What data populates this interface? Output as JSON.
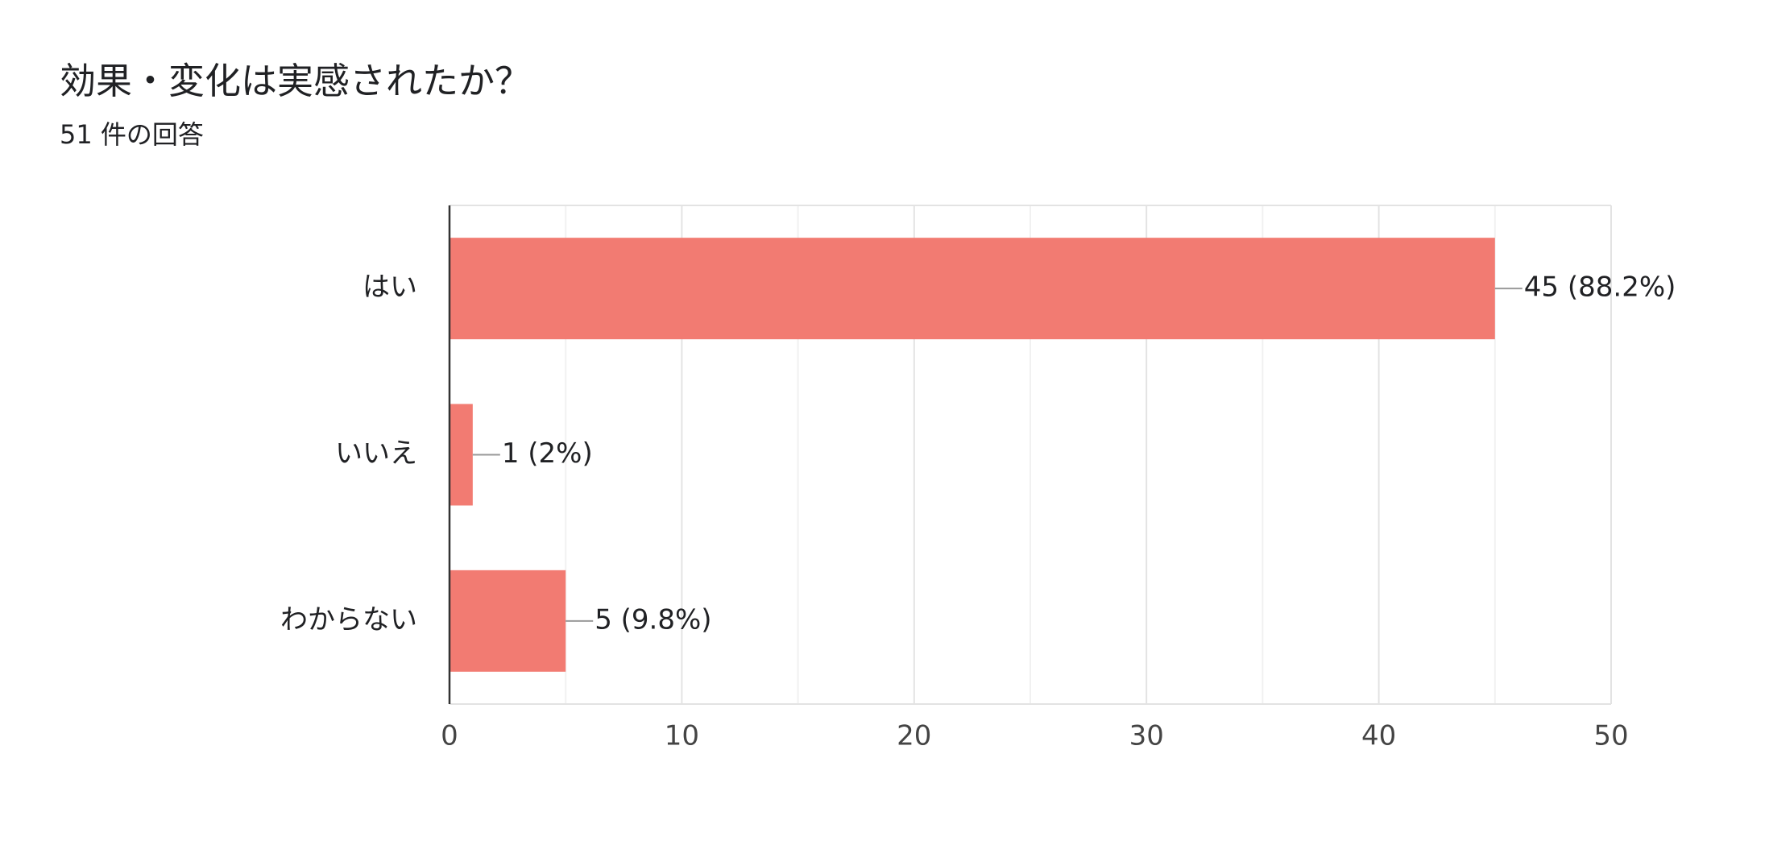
{
  "chart_data": {
    "type": "bar",
    "orientation": "horizontal",
    "title": "効果・変化は実感されたか？",
    "subtitle": "51 件の回答",
    "categories": [
      "はい",
      "いいえ",
      "わからない"
    ],
    "values": [
      45,
      1,
      5
    ],
    "value_labels": [
      "45 (88.2%)",
      "1 (2%)",
      "5 (9.8%)"
    ],
    "color": "#f27b72",
    "xlim": [
      0,
      50
    ],
    "xticks": [
      0,
      10,
      20,
      30,
      40,
      50
    ],
    "xminorticks": [
      5,
      15,
      25,
      35,
      45
    ],
    "grid": true
  }
}
